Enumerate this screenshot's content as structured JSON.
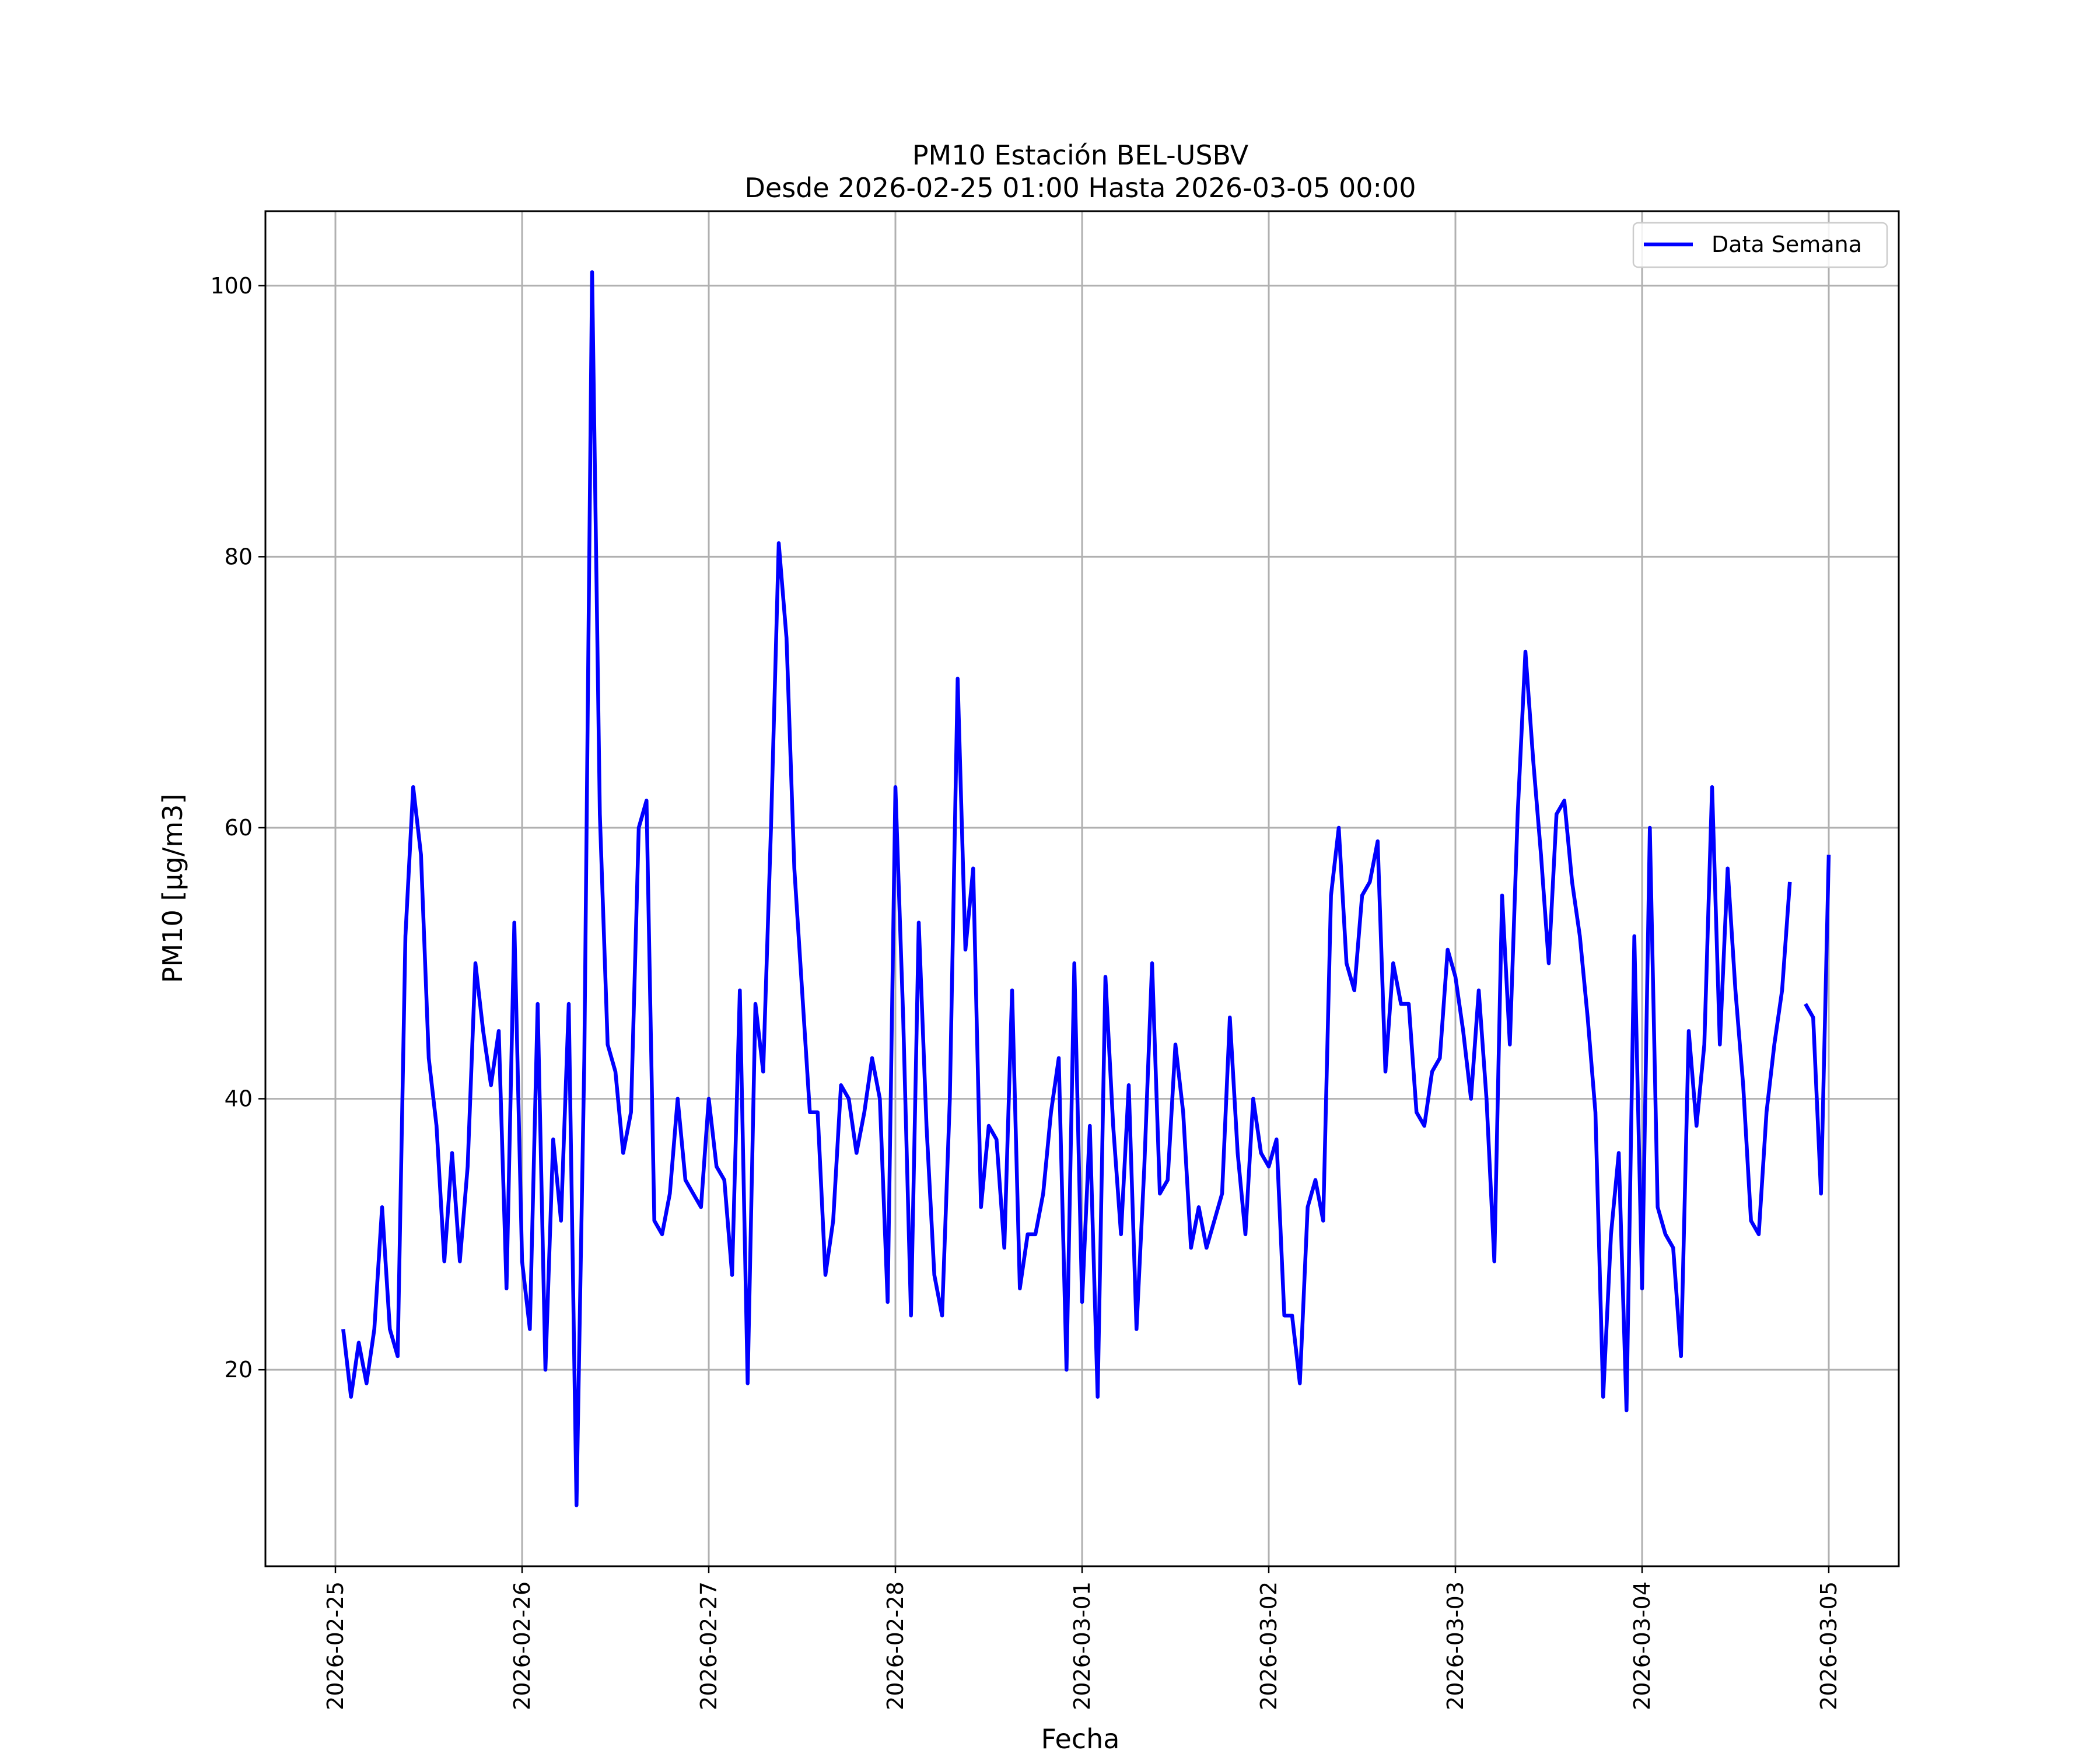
{
  "chart_data": {
    "type": "line",
    "title": "PM10 Estación BEL-USBV",
    "subtitle": "Desde 2026-02-25 01:00 Hasta 2026-03-05 00:00",
    "xlabel": "Fecha",
    "ylabel": "PM10 [μg/m3]",
    "ylim": [
      5.5,
      105.5
    ],
    "xlim": [
      "2026-02-24 15:00",
      "2026-03-05 09:00"
    ],
    "grid": true,
    "legend": "top-right",
    "x_tick_labels": [
      "2026-02-25",
      "2026-02-26",
      "2026-02-27",
      "2026-02-28",
      "2026-03-01",
      "2026-03-02",
      "2026-03-03",
      "2026-03-04",
      "2026-03-05"
    ],
    "y_ticks": [
      20,
      40,
      60,
      80,
      100
    ],
    "start": "2026-02-25 01:00",
    "interval_hours": 1,
    "series": [
      {
        "name": "Data Semana",
        "color": "#0000ff",
        "values": [
          23,
          18,
          22,
          19,
          23,
          32,
          23,
          21,
          52,
          63,
          58,
          43,
          38,
          28,
          36,
          28,
          35,
          50,
          45,
          41,
          45,
          26,
          53,
          28,
          23,
          47,
          20,
          37,
          31,
          47,
          10,
          43,
          101,
          61,
          44,
          42,
          36,
          39,
          60,
          62,
          31,
          30,
          33,
          40,
          34,
          33,
          32,
          40,
          35,
          34,
          27,
          48,
          19,
          47,
          42,
          60,
          81,
          74,
          57,
          48,
          39,
          39,
          27,
          31,
          41,
          40,
          36,
          39,
          43,
          40,
          25,
          63,
          46,
          24,
          53,
          38,
          27,
          24,
          40,
          71,
          51,
          57,
          32,
          38,
          37,
          29,
          48,
          26,
          30,
          30,
          33,
          39,
          43,
          20,
          50,
          25,
          38,
          18,
          49,
          38,
          30,
          41,
          23,
          35,
          50,
          33,
          34,
          44,
          39,
          29,
          32,
          29,
          31,
          33,
          46,
          36,
          30,
          40,
          36,
          35,
          37,
          24,
          24,
          19,
          32,
          34,
          31,
          55,
          60,
          50,
          48,
          55,
          56,
          59,
          42,
          50,
          47,
          47,
          39,
          38,
          42,
          43,
          51,
          49,
          45,
          40,
          48,
          40,
          28,
          55,
          44,
          61,
          73,
          65,
          58,
          50,
          61,
          62,
          56,
          52,
          46,
          39,
          18,
          30,
          36,
          17,
          52,
          26,
          60,
          32,
          30,
          29,
          21,
          45,
          38,
          44,
          63,
          44,
          57,
          48,
          41,
          31,
          30,
          39,
          44,
          48,
          56,
          null,
          47,
          46,
          33,
          58
        ]
      }
    ]
  }
}
